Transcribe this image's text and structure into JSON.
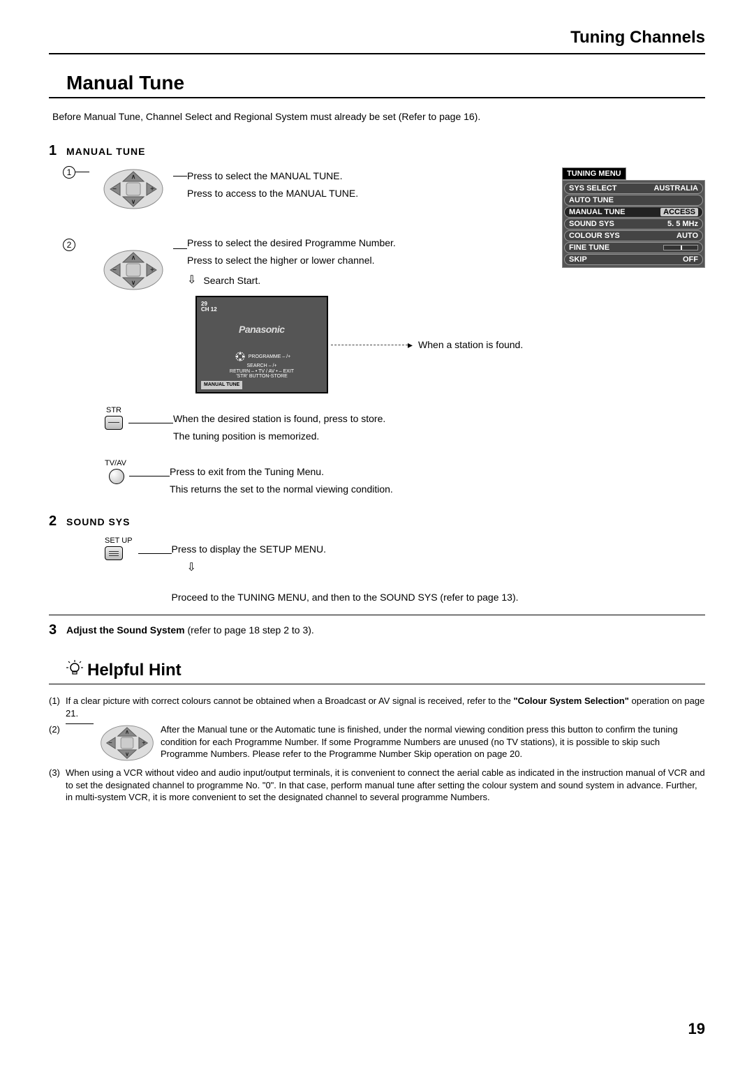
{
  "header": {
    "title": "Tuning Channels"
  },
  "mainTitle": "Manual Tune",
  "intro": "Before Manual Tune, Channel Select and Regional System must already be set (Refer to page 16).",
  "step1": {
    "num": "1",
    "heading": "MANUAL TUNE",
    "sub1": {
      "circ": "1",
      "line1": "Press to select the MANUAL TUNE.",
      "line2": "Press to access to the MANUAL TUNE."
    },
    "sub2": {
      "circ": "2",
      "line1": "Press to select the desired Programme Number.",
      "line2": "Press to select the  higher or lower channel.",
      "search": "Search Start."
    },
    "tv": {
      "progNum": "29",
      "ch": "CH 12",
      "logo": "Panasonic",
      "instr1": "PROGRAMME  – /+",
      "instr2": "SEARCH  – /+",
      "instr3": "RETURN – •   TV / AV • – EXIT",
      "instr4": "'STR' BUTTON-STORE",
      "footer": "MANUAL TUNE",
      "found": "When a station is found."
    },
    "str": {
      "label": "STR",
      "line1": "When the desired station is found, press to store.",
      "line2": "The tuning position is memorized."
    },
    "tvav": {
      "label": "TV/AV",
      "line1": "Press to exit from the Tuning Menu.",
      "line2": "This returns the set to the normal viewing condition."
    }
  },
  "step2": {
    "num": "2",
    "heading": "SOUND SYS",
    "setup": {
      "label": "SET UP",
      "line1": "Press to display the SETUP MENU.",
      "line2": "Proceed to the TUNING MENU, and then to the SOUND SYS (refer to page 13)."
    }
  },
  "step3": {
    "num": "3",
    "textBold": "Adjust the Sound System",
    "textRest": " (refer to page 18 step 2 to 3)."
  },
  "menu": {
    "title": "TUNING  MENU",
    "rows": [
      {
        "k": "SYS SELECT",
        "v": "AUSTRALIA"
      },
      {
        "k": "AUTO  TUNE",
        "v": ""
      },
      {
        "k": "MANUAL  TUNE",
        "v": "ACCESS",
        "hl": true
      },
      {
        "k": "SOUND  SYS",
        "v": "5. 5 MHz"
      },
      {
        "k": "COLOUR  SYS",
        "v": "AUTO"
      },
      {
        "k": "FINE  TUNE",
        "v": "",
        "bar": true
      },
      {
        "k": "SKIP",
        "v": "OFF"
      }
    ]
  },
  "hint": {
    "title": "Helpful Hint",
    "h1a": "If a clear picture with correct colours cannot be obtained when a Broadcast or AV signal is received, refer to the ",
    "h1b": "\"Colour System Selection\"",
    "h1c": " operation on page 21.",
    "h2": "After the Manual tune or the Automatic tune is finished, under the normal viewing condition press this button to confirm the tuning condition for each Programme Number. If some Programme Numbers are unused (no TV stations), it is possible to skip such Programme Numbers. Please refer to the Programme Number Skip operation on page 20.",
    "h3": "When using a VCR without video and audio input/output terminals, it is convenient to connect the aerial cable as indicated in the instruction manual of VCR and to set the designated channel to programme No. \"0\". In that case, perform manual tune after setting the colour system and sound system in advance. Further, in multi-system VCR, it is more convenient to set the designated channel to several programme Numbers."
  },
  "pageNum": "19",
  "colors": {
    "tvBg": "#555555",
    "menuBg": "#555555",
    "menuRow": "#444444",
    "menuHl": "#222222"
  }
}
